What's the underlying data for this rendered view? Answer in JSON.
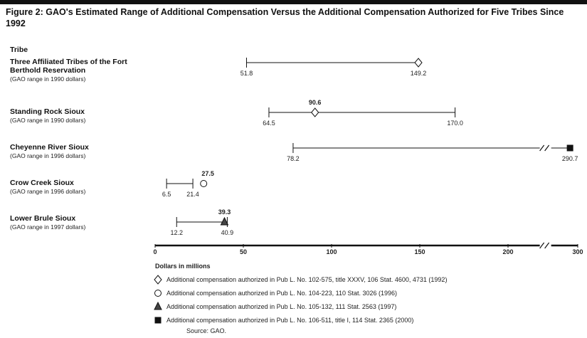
{
  "chart_data": {
    "type": "range",
    "title": "Figure 2: GAO's Estimated Range of Additional Compensation Versus the Additional Compensation Authorized for Five Tribes Since 1992",
    "category_header": "Tribe",
    "categories": [
      "Three Affiliated Tribes of the Fort Berthold Reservation",
      "Standing Rock Sioux",
      "Cheyenne River Sioux",
      "Crow Creek Sioux",
      "Lower Brule Sioux"
    ],
    "notes": [
      "(GAO range in 1990 dollars)",
      "(GAO range in 1990 dollars)",
      "(GAO range in 1996 dollars)",
      "(GAO range in 1996 dollars)",
      "(GAO range in 1997 dollars)"
    ],
    "low": [
      51.8,
      64.5,
      78.2,
      6.5,
      12.2
    ],
    "high": [
      149.2,
      170,
      290.7,
      21.4,
      40.9
    ],
    "high_value_labels": [
      "149.2",
      "170.0",
      "290.7",
      "21.4",
      "40.9"
    ],
    "authorized": [
      149.2,
      90.6,
      290.7,
      27.5,
      39.3
    ],
    "authorized_value_labels": [
      null,
      "90.6",
      null,
      "27.5",
      "39.3"
    ],
    "authorized_marker": [
      "diamond",
      "diamond",
      "square",
      "circle",
      "triangle"
    ],
    "xlim": [
      0,
      300
    ],
    "xticks": [
      0,
      50,
      100,
      150,
      200,
      300
    ],
    "axis_break": [
      218,
      268
    ],
    "xlabel": "Dollars in millions",
    "legend": [
      {
        "marker": "diamond",
        "label": "Additional compensation authorized in Pub L. No. 102-575, title XXXV, 106 Stat. 4600, 4731 (1992)"
      },
      {
        "marker": "circle",
        "label": "Additional compensation authorized in Pub L. No. 104-223, 110 Stat. 3026 (1996)"
      },
      {
        "marker": "triangle",
        "label": "Additional compensation authorized in Pub L. No. 105-132, 111 Stat. 2563 (1997)"
      },
      {
        "marker": "square",
        "label": "Additional compensation authorized in Pub L. No. 106-511, title I, 114 Stat. 2365 (2000)"
      }
    ],
    "source": "Source: GAO."
  }
}
